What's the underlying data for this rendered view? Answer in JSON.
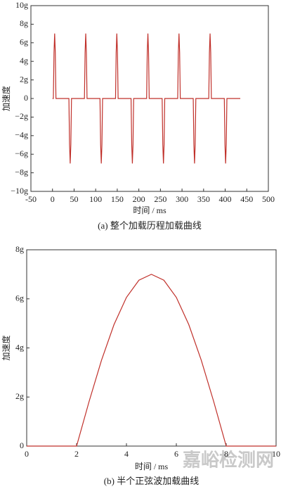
{
  "chart_data": [
    {
      "type": "line",
      "caption": "(a) 整个加载历程加载曲线",
      "xlabel": "时间 / ms",
      "ylabel": "加速度",
      "color": "#c0302a",
      "xlim": [
        -50,
        500
      ],
      "xticks": [
        -50,
        0,
        50,
        100,
        150,
        200,
        250,
        300,
        350,
        400,
        450,
        500
      ],
      "ylim": [
        -10,
        10
      ],
      "yticks": [
        {
          "value": -10,
          "label": "−10g"
        },
        {
          "value": -8,
          "label": "−8g"
        },
        {
          "value": -6,
          "label": "−6g"
        },
        {
          "value": -4,
          "label": "−4g"
        },
        {
          "value": -2,
          "label": "−2g"
        },
        0,
        {
          "value": 2,
          "label": "2g"
        },
        {
          "value": 4,
          "label": "4g"
        },
        {
          "value": 6,
          "label": "6g"
        },
        {
          "value": 8,
          "label": "8g"
        },
        {
          "value": 10,
          "label": "10g"
        }
      ],
      "x": [
        0,
        2,
        3.5,
        5,
        6.5,
        8,
        38,
        39.5,
        41,
        42.5,
        44,
        74,
        75.5,
        77,
        78.5,
        80,
        110,
        111.5,
        113,
        114.5,
        116,
        146,
        147.5,
        149,
        150.5,
        152,
        182,
        183.5,
        185,
        186.5,
        188,
        218,
        219.5,
        221,
        222.5,
        224,
        254,
        255.5,
        257,
        258.5,
        260,
        290,
        291.5,
        293,
        294.5,
        296,
        326,
        327.5,
        329,
        330.5,
        332,
        362,
        363.5,
        365,
        366.5,
        368,
        398,
        399.5,
        401,
        402.5,
        404,
        435
      ],
      "values": [
        0,
        0,
        4.95,
        7,
        4.95,
        0,
        0,
        -4.95,
        -7,
        -4.95,
        0,
        0,
        4.95,
        7,
        4.95,
        0,
        0,
        -4.95,
        -7,
        -4.95,
        0,
        0,
        4.95,
        7,
        4.95,
        0,
        0,
        -4.95,
        -7,
        -4.95,
        0,
        0,
        4.95,
        7,
        4.95,
        0,
        0,
        -4.95,
        -7,
        -4.95,
        0,
        0,
        4.95,
        7,
        4.95,
        0,
        0,
        -4.95,
        -7,
        -4.95,
        0,
        0,
        4.95,
        7,
        4.95,
        0,
        0,
        -4.95,
        -7,
        -4.95,
        0,
        0
      ]
    },
    {
      "type": "line",
      "caption": "(b) 半个正弦波加载曲线",
      "xlabel": "时间 / ms",
      "ylabel": "加速度",
      "color": "#c0302a",
      "xlim": [
        0,
        10
      ],
      "xticks": [
        0,
        2,
        4,
        6,
        8,
        10
      ],
      "ylim": [
        0,
        8
      ],
      "yticks": [
        0,
        {
          "value": 2,
          "label": "2g"
        },
        {
          "value": 4,
          "label": "4g"
        },
        {
          "value": 6,
          "label": "6g"
        },
        {
          "value": 8,
          "label": "8g"
        }
      ],
      "x": [
        0,
        2,
        2.5,
        3,
        3.5,
        4,
        4.5,
        5,
        5.5,
        6,
        6.5,
        7,
        7.5,
        8,
        10
      ],
      "values": [
        0,
        0,
        1.81,
        3.5,
        4.95,
        6.06,
        6.76,
        7,
        6.76,
        6.06,
        4.95,
        3.5,
        1.81,
        0,
        0
      ]
    }
  ],
  "watermark": "嘉峪检测网"
}
